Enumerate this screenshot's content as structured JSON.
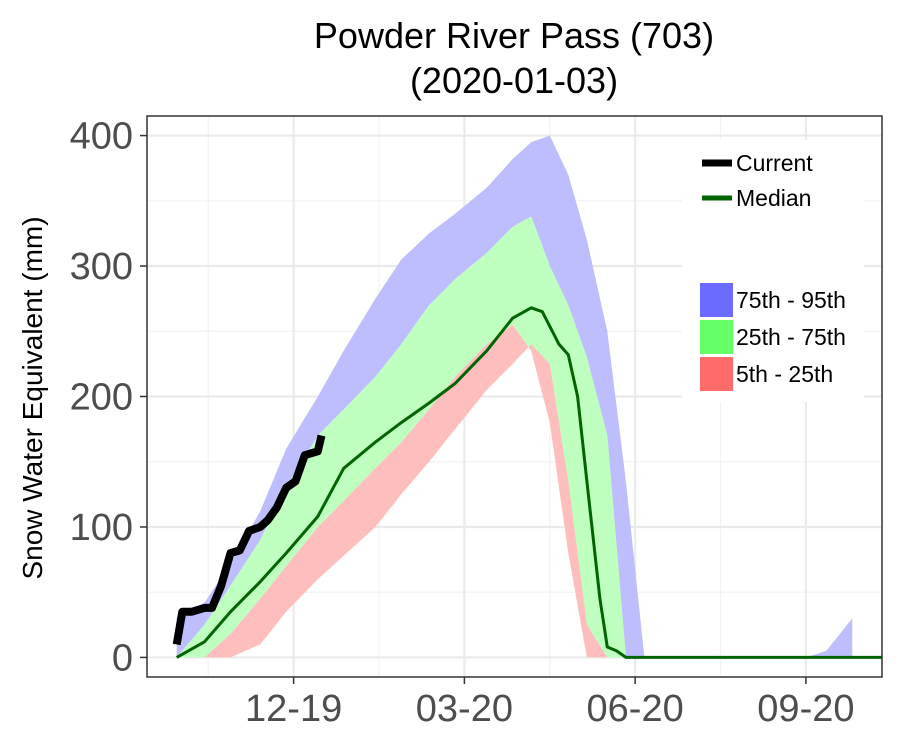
{
  "chart_data": {
    "type": "area",
    "title": "Powder River Pass (703)",
    "subtitle": "(2020-01-03)",
    "xlabel": "",
    "ylabel": "Snow Water Equivalent (mm)",
    "ylim": [
      -15,
      415
    ],
    "y_ticks": [
      0,
      100,
      200,
      300,
      400
    ],
    "x_ticks": [
      {
        "date": "2019-12-19",
        "label": "12-19"
      },
      {
        "date": "2020-03-20",
        "label": "03-20"
      },
      {
        "date": "2020-06-20",
        "label": "06-20"
      },
      {
        "date": "2020-09-20",
        "label": "09-20"
      }
    ],
    "xlim": [
      "2019-10-01",
      "2020-10-31"
    ],
    "grid": true,
    "legend_placement": "top-right",
    "legend": [
      {
        "label": "Current",
        "color": "#000000",
        "kind": "line"
      },
      {
        "label": "Median",
        "color": "#006400",
        "kind": "line"
      },
      {
        "label": "75th - 95th",
        "color": "#6b6bff",
        "kind": "box"
      },
      {
        "label": "25th - 75th",
        "color": "#66ff66",
        "kind": "box"
      },
      {
        "label": "5th - 25th",
        "color": "#ff6b6b",
        "kind": "box"
      }
    ],
    "colors": {
      "band_75_95": "#bebeff",
      "band_25_75": "#bfffbf",
      "band_5_25": "#ffbebe",
      "median": "#006400",
      "current": "#000000"
    },
    "percentile_bands": {
      "x": [
        "2019-10-17",
        "2019-11-01",
        "2019-11-15",
        "2019-12-01",
        "2019-12-15",
        "2020-01-01",
        "2020-01-15",
        "2020-02-01",
        "2020-02-15",
        "2020-03-01",
        "2020-03-15",
        "2020-04-01",
        "2020-04-15",
        "2020-04-25",
        "2020-05-05",
        "2020-05-15",
        "2020-05-25",
        "2020-06-05",
        "2020-06-15",
        "2020-06-25",
        "2020-07-05",
        "2020-07-15",
        "2020-08-01",
        "2020-08-20",
        "2020-09-10",
        "2020-09-20",
        "2020-10-01",
        "2020-10-15"
      ],
      "p5": [
        0,
        0,
        0,
        10,
        35,
        60,
        78,
        100,
        125,
        150,
        175,
        205,
        225,
        240,
        225,
        135,
        25,
        0,
        0,
        0,
        0,
        0,
        0,
        0,
        0,
        0,
        0,
        0
      ],
      "p25": [
        0,
        0,
        18,
        45,
        70,
        100,
        120,
        145,
        165,
        190,
        215,
        240,
        255,
        235,
        180,
        80,
        0,
        0,
        0,
        0,
        0,
        0,
        0,
        0,
        0,
        0,
        0,
        0
      ],
      "p75": [
        0,
        25,
        55,
        90,
        130,
        170,
        190,
        215,
        240,
        270,
        290,
        310,
        330,
        338,
        300,
        270,
        230,
        170,
        0,
        0,
        0,
        0,
        0,
        0,
        0,
        0,
        0,
        0
      ],
      "p95": [
        30,
        42,
        72,
        112,
        160,
        200,
        235,
        275,
        305,
        325,
        340,
        360,
        382,
        395,
        400,
        370,
        320,
        250,
        135,
        0,
        0,
        0,
        0,
        0,
        0,
        0,
        5,
        30
      ]
    },
    "median": {
      "x": [
        "2019-10-17",
        "2019-11-01",
        "2019-11-15",
        "2019-12-01",
        "2019-12-15",
        "2020-01-01",
        "2020-01-15",
        "2020-02-01",
        "2020-02-15",
        "2020-03-01",
        "2020-03-15",
        "2020-04-01",
        "2020-04-15",
        "2020-04-25",
        "2020-05-01",
        "2020-05-10",
        "2020-05-15",
        "2020-05-20",
        "2020-05-25",
        "2020-06-01",
        "2020-06-05",
        "2020-06-10",
        "2020-06-15",
        "2020-06-20",
        "2020-10-31"
      ],
      "y": [
        0,
        12,
        35,
        58,
        80,
        108,
        145,
        165,
        180,
        195,
        210,
        235,
        260,
        268,
        265,
        240,
        232,
        200,
        135,
        45,
        8,
        5,
        0,
        0,
        0
      ]
    },
    "current": {
      "x": [
        "2019-10-17",
        "2019-10-20",
        "2019-10-25",
        "2019-11-01",
        "2019-11-05",
        "2019-11-10",
        "2019-11-15",
        "2019-11-20",
        "2019-11-25",
        "2019-12-01",
        "2019-12-05",
        "2019-12-10",
        "2019-12-15",
        "2019-12-20",
        "2019-12-25",
        "2020-01-01",
        "2020-01-03"
      ],
      "y": [
        10,
        35,
        35,
        38,
        38,
        55,
        80,
        82,
        97,
        100,
        105,
        115,
        130,
        135,
        155,
        158,
        170
      ]
    }
  }
}
